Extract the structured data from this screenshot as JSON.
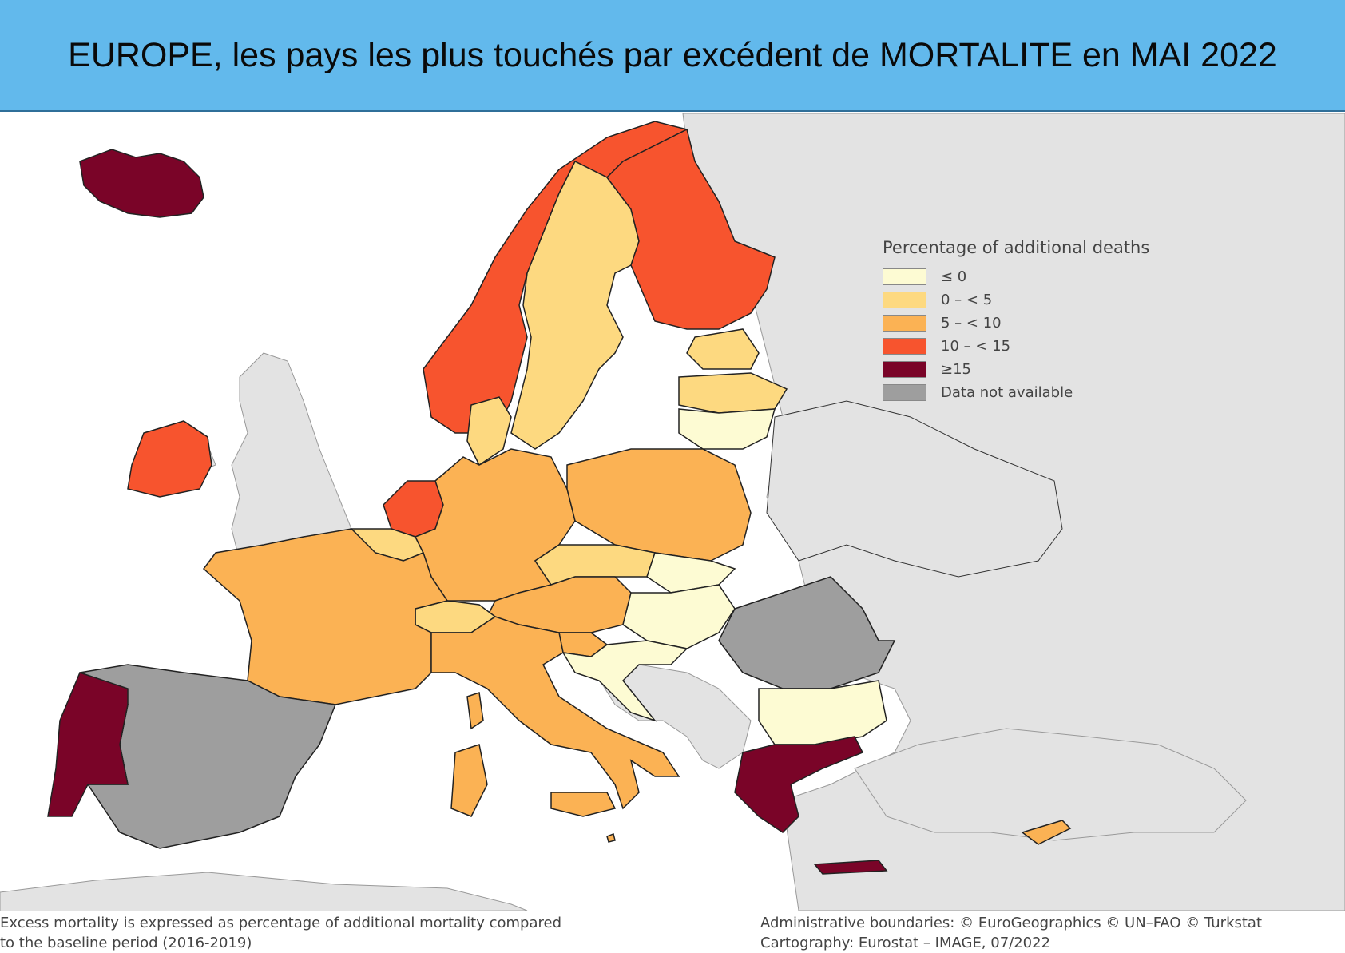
{
  "title": "EUROPE, les pays les plus touchés par excédent de MORTALITE en MAI 2022",
  "legend": {
    "title": "Percentage of additional deaths",
    "items": [
      {
        "label": "≤ 0",
        "color": "#fdfbd3"
      },
      {
        "label": "0 – < 5",
        "color": "#fdd980"
      },
      {
        "label": "5 – < 10",
        "color": "#fbb254"
      },
      {
        "label": "10 – < 15",
        "color": "#f7542e"
      },
      {
        "label": "≥15",
        "color": "#7a0428"
      },
      {
        "label": "Data not available",
        "color": "#9e9e9e"
      }
    ]
  },
  "colors": {
    "sea": "#ffffff",
    "non_member_land": "#e3e3e3",
    "border": "#222222"
  },
  "countries": {
    "iceland": "≥15",
    "norway": "10 – < 15",
    "sweden": "0 – < 5",
    "finland": "10 – < 15",
    "estonia": "0 – < 5",
    "latvia": "0 – < 5",
    "lithuania": "≤ 0",
    "denmark": "0 – < 5",
    "ireland": "10 – < 15",
    "netherlands": "10 – < 15",
    "belgium": "0 – < 5",
    "luxembourg": "0 – < 5",
    "germany": "5 – < 10",
    "poland": "5 – < 10",
    "czechia": "0 – < 5",
    "slovakia": "≤ 0",
    "austria": "5 – < 10",
    "switzerland": "0 – < 5",
    "hungary": "≤ 0",
    "slovenia": "5 – < 10",
    "croatia": "≤ 0",
    "france": "5 – < 10",
    "italy": "5 – < 10",
    "spain": "Data not available",
    "portugal": "≥15",
    "romania": "Data not available",
    "bulgaria": "≤ 0",
    "greece": "≥15",
    "cyprus": "5 – < 10",
    "malta": "5 – < 10"
  },
  "footer": {
    "left_line1": "Excess mortality is expressed as percentage of additional mortality compared",
    "left_line2": "to the baseline period (2016-2019)",
    "right_line1": "Administrative boundaries: © EuroGeographics © UN–FAO © Turkstat",
    "right_line2": "Cartography: Eurostat – IMAGE, 07/2022"
  }
}
